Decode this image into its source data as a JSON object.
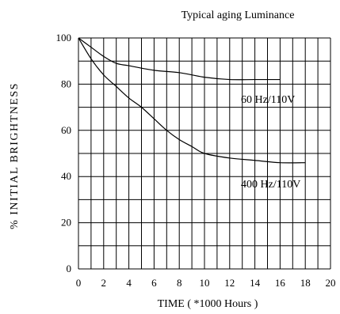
{
  "chart_data": {
    "type": "line",
    "title": "Typical aging Luminance",
    "xlabel": "TIME ( *1000 Hours  )",
    "ylabel": "%   INITIAL BRIGHTNESS",
    "xlim": [
      0,
      20
    ],
    "ylim": [
      0,
      100
    ],
    "x_ticks": [
      "0",
      "2",
      "4",
      "6",
      "8",
      "10",
      "12",
      "14",
      "16",
      "18",
      "20"
    ],
    "y_ticks": [
      "0",
      "20",
      "40",
      "60",
      "80",
      "100"
    ],
    "grid": true,
    "series": [
      {
        "name": "60 Hz/110V",
        "x": [
          0,
          1,
          2,
          3,
          4,
          6,
          8,
          10,
          12,
          14,
          16
        ],
        "y": [
          100,
          96,
          92,
          89,
          88,
          86,
          85,
          83,
          82,
          82,
          82
        ]
      },
      {
        "name": "400 Hz/110V",
        "x": [
          0,
          1,
          2,
          3,
          4,
          5,
          6,
          7,
          8,
          9,
          10,
          12,
          14,
          16,
          18
        ],
        "y": [
          100,
          91,
          84,
          79,
          74,
          70,
          65,
          60,
          56,
          53,
          50,
          48,
          47,
          46,
          46
        ]
      }
    ]
  }
}
